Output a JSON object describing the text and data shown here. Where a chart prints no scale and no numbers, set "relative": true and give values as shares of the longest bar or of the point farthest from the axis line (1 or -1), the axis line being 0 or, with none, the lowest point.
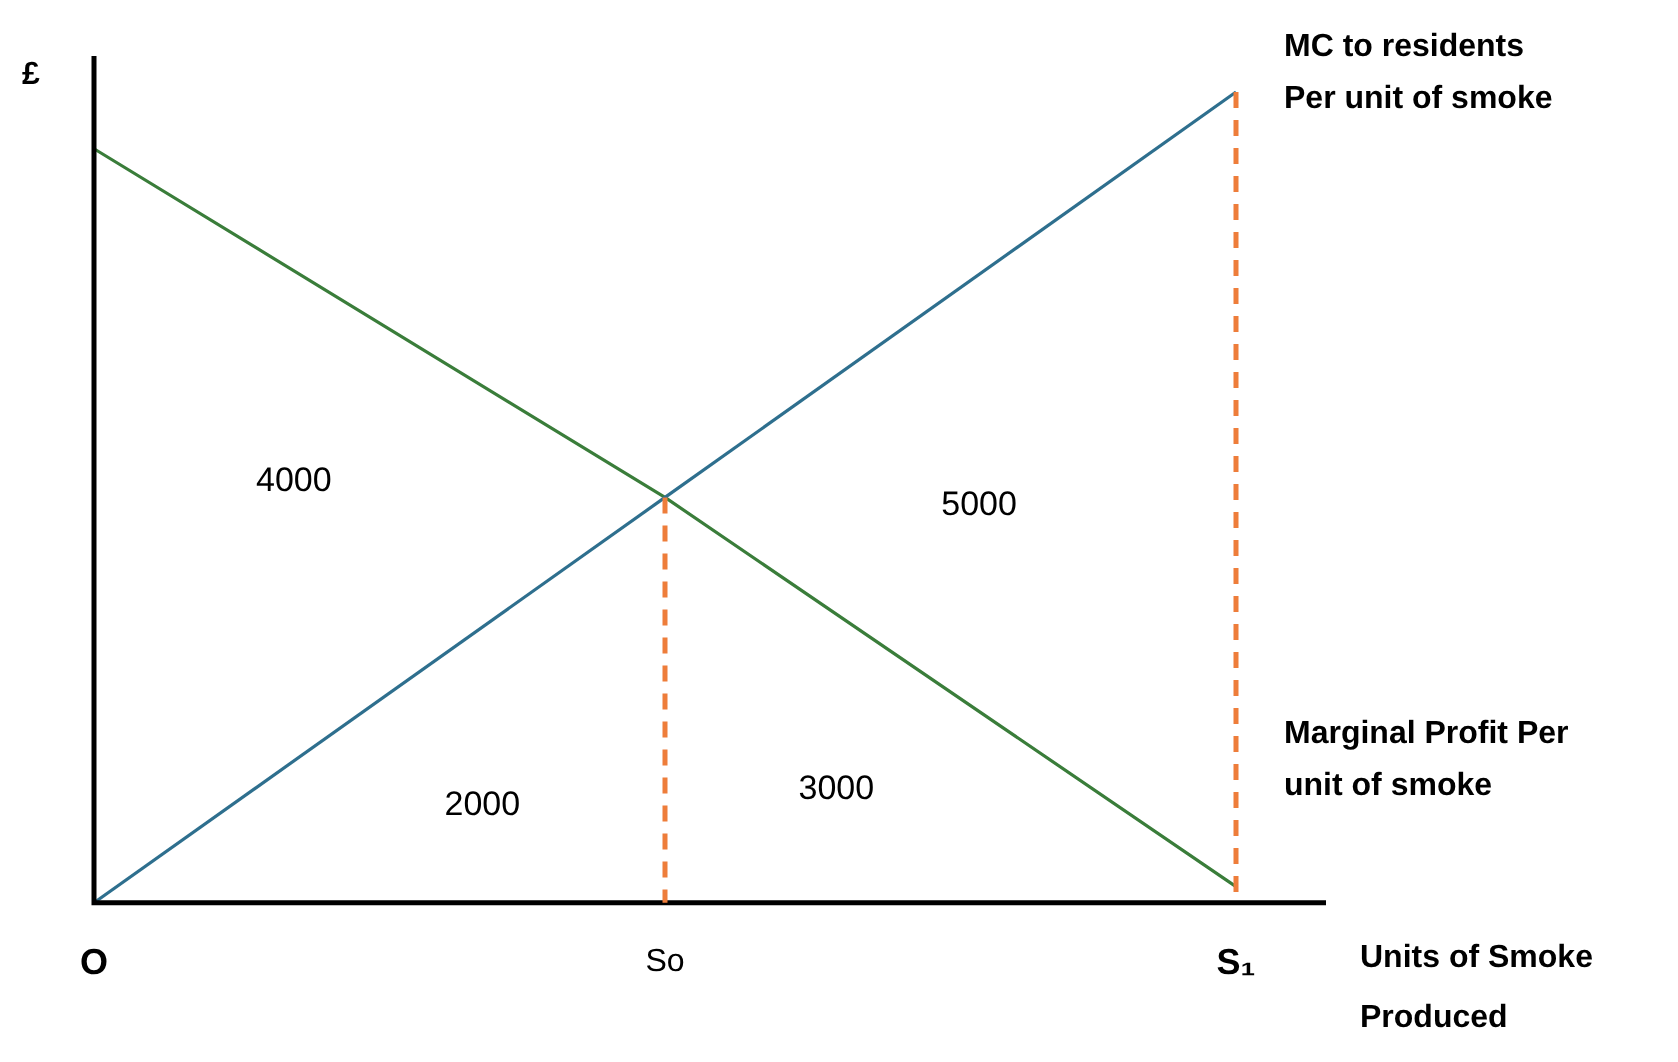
{
  "chart_data": {
    "type": "line",
    "relative": true,
    "xlabel": "Units of Smoke Produced",
    "ylabel": "£",
    "categories": [
      "O",
      "So",
      "S₁"
    ],
    "series": [
      {
        "name": "MC to residents Per unit of smoke",
        "color": "#2e6f8e",
        "values": [
          0,
          0.5,
          1
        ]
      },
      {
        "name": "Marginal Profit Per unit of smoke",
        "color": "#3a7d3a",
        "values": [
          0.93,
          0.5,
          0.02
        ]
      }
    ],
    "ref_lines": [
      {
        "axis": "x",
        "value": "So",
        "color": "#ee7d3a",
        "line_style": "dashed"
      },
      {
        "axis": "x",
        "value": "S₁",
        "color": "#ee7d3a",
        "line_style": "dashed"
      }
    ],
    "annotations": [
      "4000",
      "2000",
      "3000",
      "5000"
    ],
    "grid": false,
    "legend": false,
    "marker": "none",
    "line_style": "solid"
  }
}
